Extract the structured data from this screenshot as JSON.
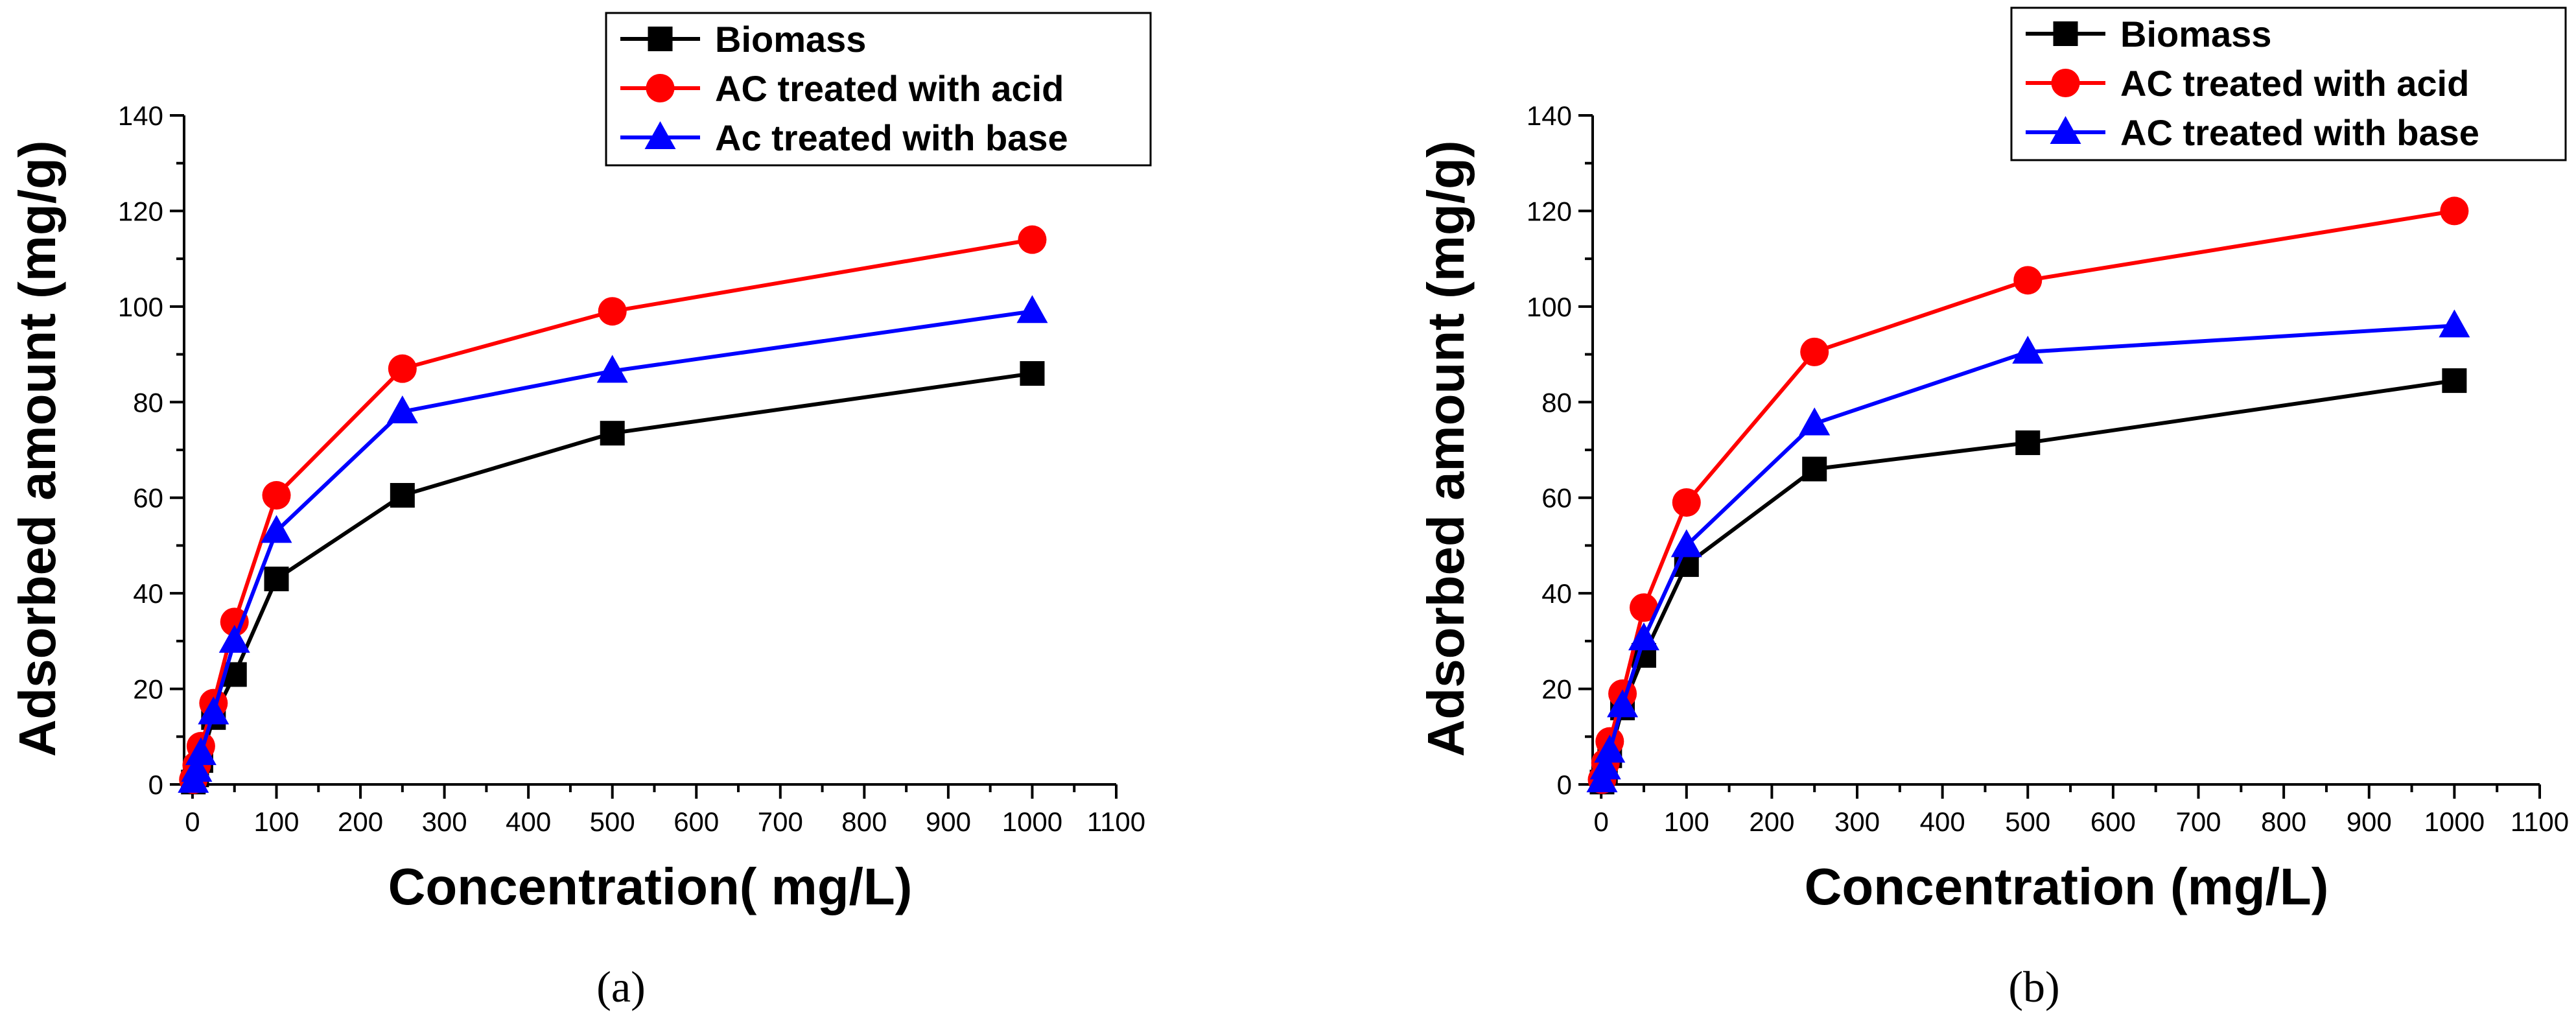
{
  "chart_data": [
    {
      "type": "line",
      "panel_label": "(a)",
      "xlabel": "Concentration( mg/L)",
      "ylabel": "Adsorbed amount (mg/g)",
      "xlim": [
        -10,
        1100
      ],
      "ylim": [
        0,
        140
      ],
      "xticks": [
        "0",
        "100",
        "200",
        "300",
        "400",
        "500",
        "600",
        "700",
        "800",
        "900",
        "1000",
        "1100"
      ],
      "yticks": [
        "0",
        "20",
        "40",
        "60",
        "80",
        "100",
        "120",
        "140"
      ],
      "legend_position": "top-right",
      "series": [
        {
          "name": "Biomass",
          "color": "#000000",
          "marker": "square",
          "x": [
            1,
            5,
            10,
            25,
            50,
            100,
            250,
            500,
            1000
          ],
          "y": [
            0.5,
            2,
            5,
            14,
            23,
            43,
            60.5,
            73.5,
            86
          ]
        },
        {
          "name": "AC treated with acid",
          "color": "#ff0000",
          "marker": "circle",
          "x": [
            1,
            5,
            10,
            25,
            50,
            100,
            250,
            500,
            1000
          ],
          "y": [
            1,
            4,
            8,
            17,
            34,
            60.5,
            87,
            99,
            114
          ]
        },
        {
          "name": "Ac treated with base",
          "color": "#0000ff",
          "marker": "triangle",
          "x": [
            1,
            5,
            10,
            25,
            50,
            100,
            250,
            500,
            1000
          ],
          "y": [
            0.7,
            3,
            6.5,
            15,
            30,
            53,
            78,
            86.5,
            99
          ]
        }
      ]
    },
    {
      "type": "line",
      "panel_label": "(b)",
      "xlabel": "Concentration (mg/L)",
      "ylabel": "Adsorbed amount (mg/g)",
      "xlim": [
        -10,
        1100
      ],
      "ylim": [
        0,
        140
      ],
      "xticks": [
        "0",
        "100",
        "200",
        "300",
        "400",
        "500",
        "600",
        "700",
        "800",
        "900",
        "1000",
        "1100"
      ],
      "yticks": [
        "0",
        "20",
        "40",
        "60",
        "80",
        "100",
        "120",
        "140"
      ],
      "legend_position": "top-right",
      "series": [
        {
          "name": "Biomass",
          "color": "#000000",
          "marker": "square",
          "x": [
            1,
            5,
            10,
            25,
            50,
            100,
            250,
            500,
            1000
          ],
          "y": [
            0.5,
            2.5,
            6,
            16,
            27,
            46,
            66,
            71.5,
            84.5
          ]
        },
        {
          "name": "AC treated with acid",
          "color": "#ff0000",
          "marker": "circle",
          "x": [
            1,
            5,
            10,
            25,
            50,
            100,
            250,
            500,
            1000
          ],
          "y": [
            1,
            4.5,
            9,
            19,
            37,
            59,
            90.5,
            105.5,
            120
          ]
        },
        {
          "name": "AC treated with base",
          "color": "#0000ff",
          "marker": "triangle",
          "x": [
            1,
            5,
            10,
            25,
            50,
            100,
            250,
            500,
            1000
          ],
          "y": [
            0.8,
            3.5,
            7,
            16.5,
            30.5,
            50,
            75.5,
            90.5,
            96
          ]
        }
      ]
    }
  ]
}
